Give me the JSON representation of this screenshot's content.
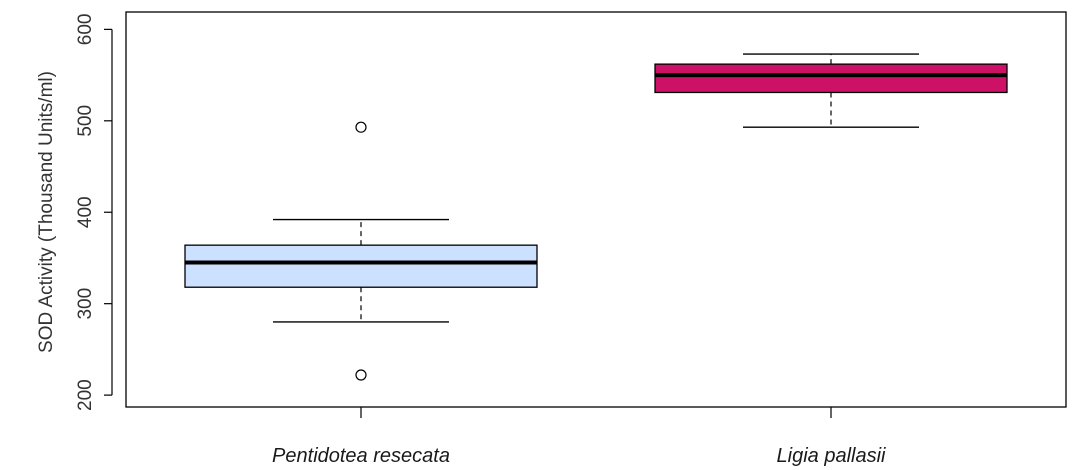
{
  "chart_data": {
    "type": "box",
    "ylabel": "SOD Activity (Thousand Units/ml)",
    "xlabel": "",
    "title": "",
    "ylim": [
      187,
      619
    ],
    "yticks": [
      200,
      300,
      400,
      500,
      600
    ],
    "grid": false,
    "groups": [
      {
        "label": "Pentidotea resecata",
        "color": "#cce0ff",
        "whisker_low": 280,
        "q1": 318,
        "median": 345,
        "q3": 364,
        "whisker_high": 392,
        "outliers": [
          222,
          493
        ]
      },
      {
        "label": "Ligia pallasii",
        "color": "#cc1166",
        "whisker_low": 493,
        "q1": 531,
        "median": 550,
        "q3": 562,
        "whisker_high": 573,
        "outliers": []
      }
    ]
  }
}
